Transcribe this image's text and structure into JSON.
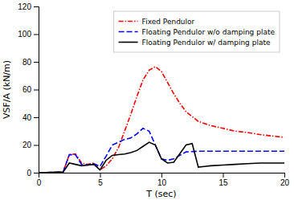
{
  "chart_data": {
    "type": "line",
    "xlabel": "T (sec)",
    "ylabel": "VSF/A (kN/m)",
    "xlim": [
      0,
      20
    ],
    "ylim": [
      0,
      120
    ],
    "xticks": [
      0,
      5,
      10,
      15,
      20
    ],
    "yticks": [
      0,
      20,
      40,
      60,
      80,
      100,
      120
    ],
    "legend": "upper right",
    "series": [
      {
        "name": "Fixed Pendulor",
        "color": "red",
        "line_style": "dashdot",
        "x": [
          0,
          2.0,
          2.5,
          3.0,
          3.5,
          4.0,
          4.5,
          5.0,
          5.5,
          6.0,
          6.5,
          7.0,
          7.5,
          8.0,
          8.5,
          9.0,
          9.5,
          10.0,
          10.5,
          11.0,
          11.5,
          12.0,
          13.0,
          14.0,
          15.0,
          16.0,
          17.0,
          18.0,
          19.0,
          20.0
        ],
        "values": [
          0,
          0.5,
          13.0,
          13.5,
          7.0,
          6.0,
          7.0,
          2.0,
          5.0,
          10.0,
          18.0,
          30.0,
          42.0,
          55.0,
          67.0,
          74.0,
          76.5,
          73.0,
          65.0,
          57.0,
          50.0,
          44.0,
          37.0,
          34.0,
          32.0,
          30.0,
          29.0,
          27.5,
          26.5,
          25.5
        ]
      },
      {
        "name": "Floating Pendulor w/o damping plate",
        "color": "blue",
        "line_style": "dashed",
        "x": [
          0,
          2.0,
          2.5,
          3.0,
          3.5,
          4.0,
          4.5,
          5.0,
          5.5,
          6.0,
          6.5,
          7.0,
          7.5,
          8.0,
          8.5,
          9.0,
          9.5,
          10.0,
          10.5,
          11.0,
          12.0,
          13.0,
          14.0,
          15.0,
          16.0,
          17.0,
          18.0,
          19.0,
          20.0
        ],
        "values": [
          0,
          0.5,
          13.0,
          13.0,
          6.0,
          5.5,
          6.5,
          4.5,
          12.0,
          20.0,
          22.0,
          24.0,
          25.0,
          28.0,
          32.0,
          30.0,
          20.0,
          10.0,
          9.0,
          10.0,
          15.0,
          15.5,
          15.5,
          15.5,
          15.5,
          15.5,
          15.5,
          15.5,
          15.5
        ]
      },
      {
        "name": "Floating Pendulor w/ damping plate",
        "color": "black",
        "line_style": "solid",
        "x": [
          0,
          2.0,
          2.5,
          3.0,
          3.5,
          4.0,
          4.5,
          5.0,
          5.5,
          6.0,
          6.5,
          7.0,
          7.5,
          8.0,
          8.5,
          9.0,
          9.5,
          10.0,
          10.5,
          11.0,
          12.0,
          12.5,
          13.0,
          13.5,
          14.0,
          15.0,
          16.0,
          17.0,
          18.0,
          19.0,
          20.0
        ],
        "values": [
          0,
          0.5,
          7.0,
          6.0,
          5.0,
          5.5,
          6.0,
          2.0,
          9.0,
          12.5,
          13.0,
          13.5,
          14.5,
          16.0,
          19.0,
          22.0,
          20.0,
          10.0,
          7.0,
          7.5,
          20.0,
          21.0,
          4.0,
          4.5,
          5.0,
          5.5,
          6.0,
          6.5,
          7.0,
          7.0,
          7.0
        ]
      }
    ]
  }
}
